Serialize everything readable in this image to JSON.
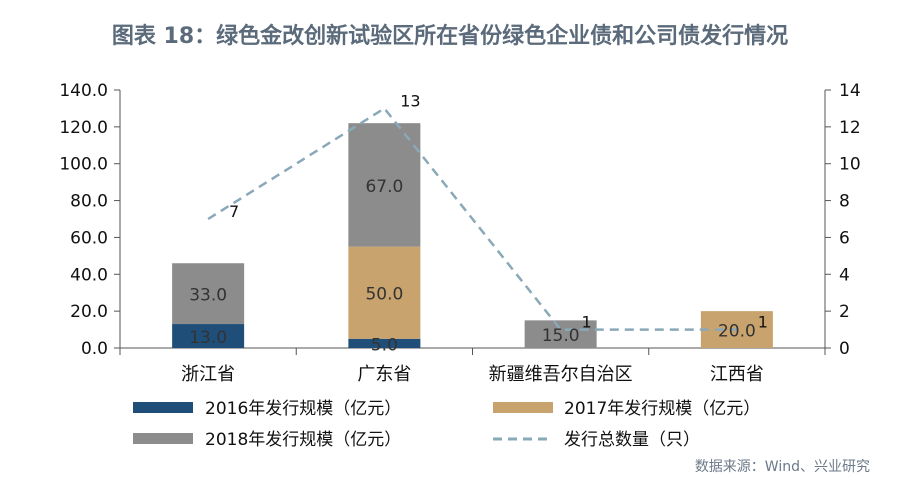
{
  "title": "图表 18：绿色金改创新试验区所在省份绿色企业债和公司债发行情况",
  "source": "数据来源：Wind、兴业研究",
  "colors": {
    "s2016": "#1f4e79",
    "s2017": "#c9a36e",
    "s2018": "#8c8c8c",
    "line": "#8aa9b8"
  },
  "chart_data": {
    "type": "bar",
    "stacked": true,
    "categories": [
      "浙江省",
      "广东省",
      "新疆维吾尔自治区",
      "江西省"
    ],
    "series": [
      {
        "name": "2016年发行规模（亿元）",
        "values": [
          13.0,
          5.0,
          0,
          0
        ],
        "labels": [
          "13.0",
          "5.0",
          "",
          ""
        ]
      },
      {
        "name": "2017年发行规模（亿元）",
        "values": [
          0,
          50.0,
          0,
          20.0
        ],
        "labels": [
          "",
          "50.0",
          "",
          "20.0"
        ]
      },
      {
        "name": "2018年发行规模（亿元）",
        "values": [
          33.0,
          67.0,
          15.0,
          0
        ],
        "labels": [
          "33.0",
          "67.0",
          "15.0",
          ""
        ]
      }
    ],
    "line_series": {
      "name": "发行总数量（只）",
      "values": [
        7,
        13,
        1,
        1
      ],
      "labels": [
        "7",
        "13",
        "1",
        "1"
      ],
      "axis": "right",
      "style": "dashed"
    },
    "left_axis": {
      "ylim": [
        0,
        140
      ],
      "ticks": [
        "0.0",
        "20.0",
        "40.0",
        "60.0",
        "80.0",
        "100.0",
        "120.0",
        "140.0"
      ]
    },
    "right_axis": {
      "ylim": [
        0,
        14
      ],
      "ticks": [
        "0",
        "2",
        "4",
        "6",
        "8",
        "10",
        "12",
        "14"
      ]
    },
    "legend_position": "bottom"
  }
}
